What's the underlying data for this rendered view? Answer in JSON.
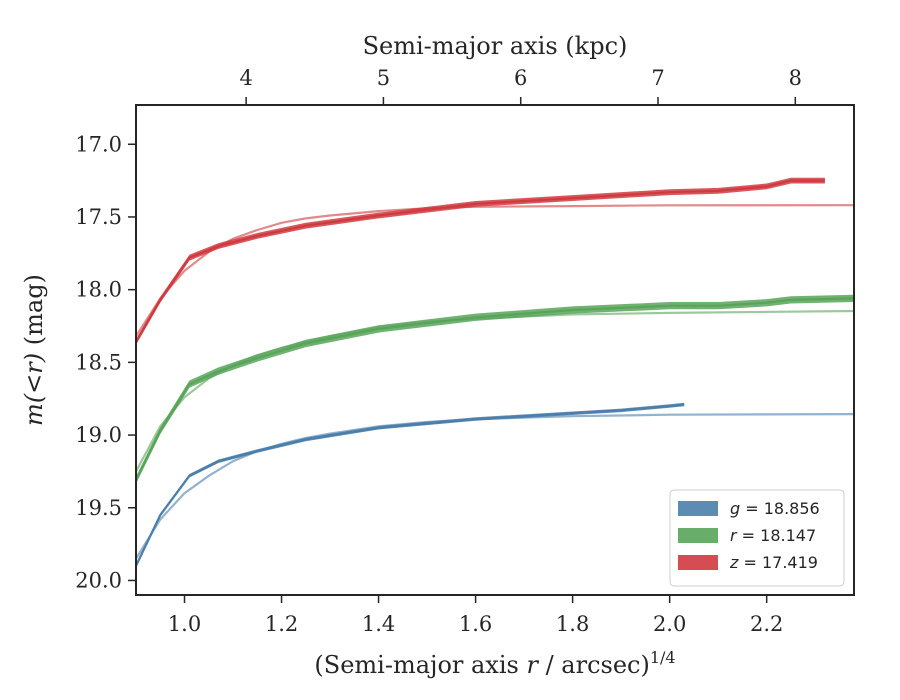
{
  "chart_data": {
    "type": "line",
    "title": "",
    "xlabel": "(Semi-major axis r / arcsec)^1/4",
    "xlabel_parts": {
      "pre": "(Semi-major axis ",
      "var": "r",
      "mid": " / arcsec)",
      "sup": "1/4"
    },
    "ylabel": "m(<r) (mag)",
    "ylabel_parts": {
      "pre": "m(<r)",
      "post": " (mag)"
    },
    "top_xlabel": "Semi-major axis (kpc)",
    "xlim": [
      0.9,
      2.38
    ],
    "ylim": [
      20.1,
      16.73
    ],
    "y_inverted": true,
    "xticks": [
      1.0,
      1.2,
      1.4,
      1.6,
      1.8,
      2.0,
      2.2
    ],
    "xtick_labels": [
      "1.0",
      "1.2",
      "1.4",
      "1.6",
      "1.8",
      "2.0",
      "2.2"
    ],
    "yticks": [
      17.0,
      17.5,
      18.0,
      18.5,
      19.0,
      19.5,
      20.0
    ],
    "ytick_labels": [
      "17.0",
      "17.5",
      "18.0",
      "18.5",
      "19.0",
      "19.5",
      "20.0"
    ],
    "top_ticks": [
      {
        "label": "4",
        "x": 1.127
      },
      {
        "label": "5",
        "x": 1.41
      },
      {
        "label": "6",
        "x": 1.693
      },
      {
        "label": "7",
        "x": 1.976
      },
      {
        "label": "8",
        "x": 2.259
      }
    ],
    "grid": false,
    "legend_position": "lower right",
    "legend": [
      {
        "band": "g",
        "value": "18.856",
        "color": "#4a7eab"
      },
      {
        "band": "r",
        "value": "18.147",
        "color": "#58a55a"
      },
      {
        "band": "z",
        "value": "17.419",
        "color": "#d03a3f"
      }
    ],
    "series": [
      {
        "name": "g = 18.856",
        "color": "#4a7eab",
        "fit_asymptote": 18.856,
        "profile": [
          [
            0.9,
            19.9
          ],
          [
            0.95,
            19.55
          ],
          [
            1.01,
            19.28
          ],
          [
            1.07,
            19.18
          ],
          [
            1.15,
            19.11
          ],
          [
            1.25,
            19.03
          ],
          [
            1.4,
            18.95
          ],
          [
            1.6,
            18.89
          ],
          [
            1.8,
            18.85
          ],
          [
            1.9,
            18.83
          ],
          [
            2.0,
            18.8
          ],
          [
            2.03,
            18.79
          ]
        ],
        "profile_width": 0.012,
        "fit": [
          [
            0.9,
            19.85
          ],
          [
            0.95,
            19.58
          ],
          [
            1.0,
            19.4
          ],
          [
            1.05,
            19.28
          ],
          [
            1.1,
            19.18
          ],
          [
            1.15,
            19.11
          ],
          [
            1.2,
            19.06
          ],
          [
            1.25,
            19.02
          ],
          [
            1.3,
            18.99
          ],
          [
            1.4,
            18.94
          ],
          [
            1.5,
            18.91
          ],
          [
            1.6,
            18.89
          ],
          [
            1.8,
            18.87
          ],
          [
            2.0,
            18.86
          ],
          [
            2.38,
            18.856
          ]
        ]
      },
      {
        "name": "r = 18.147",
        "color": "#58a55a",
        "fit_asymptote": 18.147,
        "profile": [
          [
            0.9,
            19.31
          ],
          [
            0.95,
            18.97
          ],
          [
            1.01,
            18.65
          ],
          [
            1.07,
            18.56
          ],
          [
            1.15,
            18.47
          ],
          [
            1.25,
            18.37
          ],
          [
            1.4,
            18.27
          ],
          [
            1.6,
            18.19
          ],
          [
            1.8,
            18.14
          ],
          [
            2.0,
            18.11
          ],
          [
            2.1,
            18.11
          ],
          [
            2.2,
            18.09
          ],
          [
            2.25,
            18.07
          ],
          [
            2.38,
            18.06
          ]
        ],
        "profile_width": 0.025,
        "fit": [
          [
            0.9,
            19.25
          ],
          [
            0.95,
            18.94
          ],
          [
            1.0,
            18.74
          ],
          [
            1.05,
            18.61
          ],
          [
            1.1,
            18.52
          ],
          [
            1.15,
            18.45
          ],
          [
            1.2,
            18.4
          ],
          [
            1.25,
            18.36
          ],
          [
            1.3,
            18.32
          ],
          [
            1.4,
            18.26
          ],
          [
            1.5,
            18.22
          ],
          [
            1.6,
            18.2
          ],
          [
            1.8,
            18.17
          ],
          [
            2.0,
            18.16
          ],
          [
            2.38,
            18.147
          ]
        ]
      },
      {
        "name": "z = 17.419",
        "color": "#d03a3f",
        "fit_asymptote": 17.419,
        "profile": [
          [
            0.9,
            18.36
          ],
          [
            0.95,
            18.07
          ],
          [
            1.01,
            17.78
          ],
          [
            1.07,
            17.7
          ],
          [
            1.15,
            17.63
          ],
          [
            1.25,
            17.56
          ],
          [
            1.4,
            17.49
          ],
          [
            1.6,
            17.41
          ],
          [
            1.8,
            17.37
          ],
          [
            2.0,
            17.33
          ],
          [
            2.1,
            17.32
          ],
          [
            2.2,
            17.29
          ],
          [
            2.25,
            17.25
          ],
          [
            2.32,
            17.25
          ]
        ],
        "profile_width": 0.02,
        "fit": [
          [
            0.9,
            18.32
          ],
          [
            0.95,
            18.06
          ],
          [
            1.0,
            17.87
          ],
          [
            1.05,
            17.74
          ],
          [
            1.1,
            17.65
          ],
          [
            1.15,
            17.59
          ],
          [
            1.2,
            17.54
          ],
          [
            1.25,
            17.51
          ],
          [
            1.3,
            17.49
          ],
          [
            1.4,
            17.46
          ],
          [
            1.5,
            17.44
          ],
          [
            1.6,
            17.43
          ],
          [
            1.8,
            17.425
          ],
          [
            2.0,
            17.42
          ],
          [
            2.38,
            17.419
          ]
        ]
      }
    ]
  }
}
